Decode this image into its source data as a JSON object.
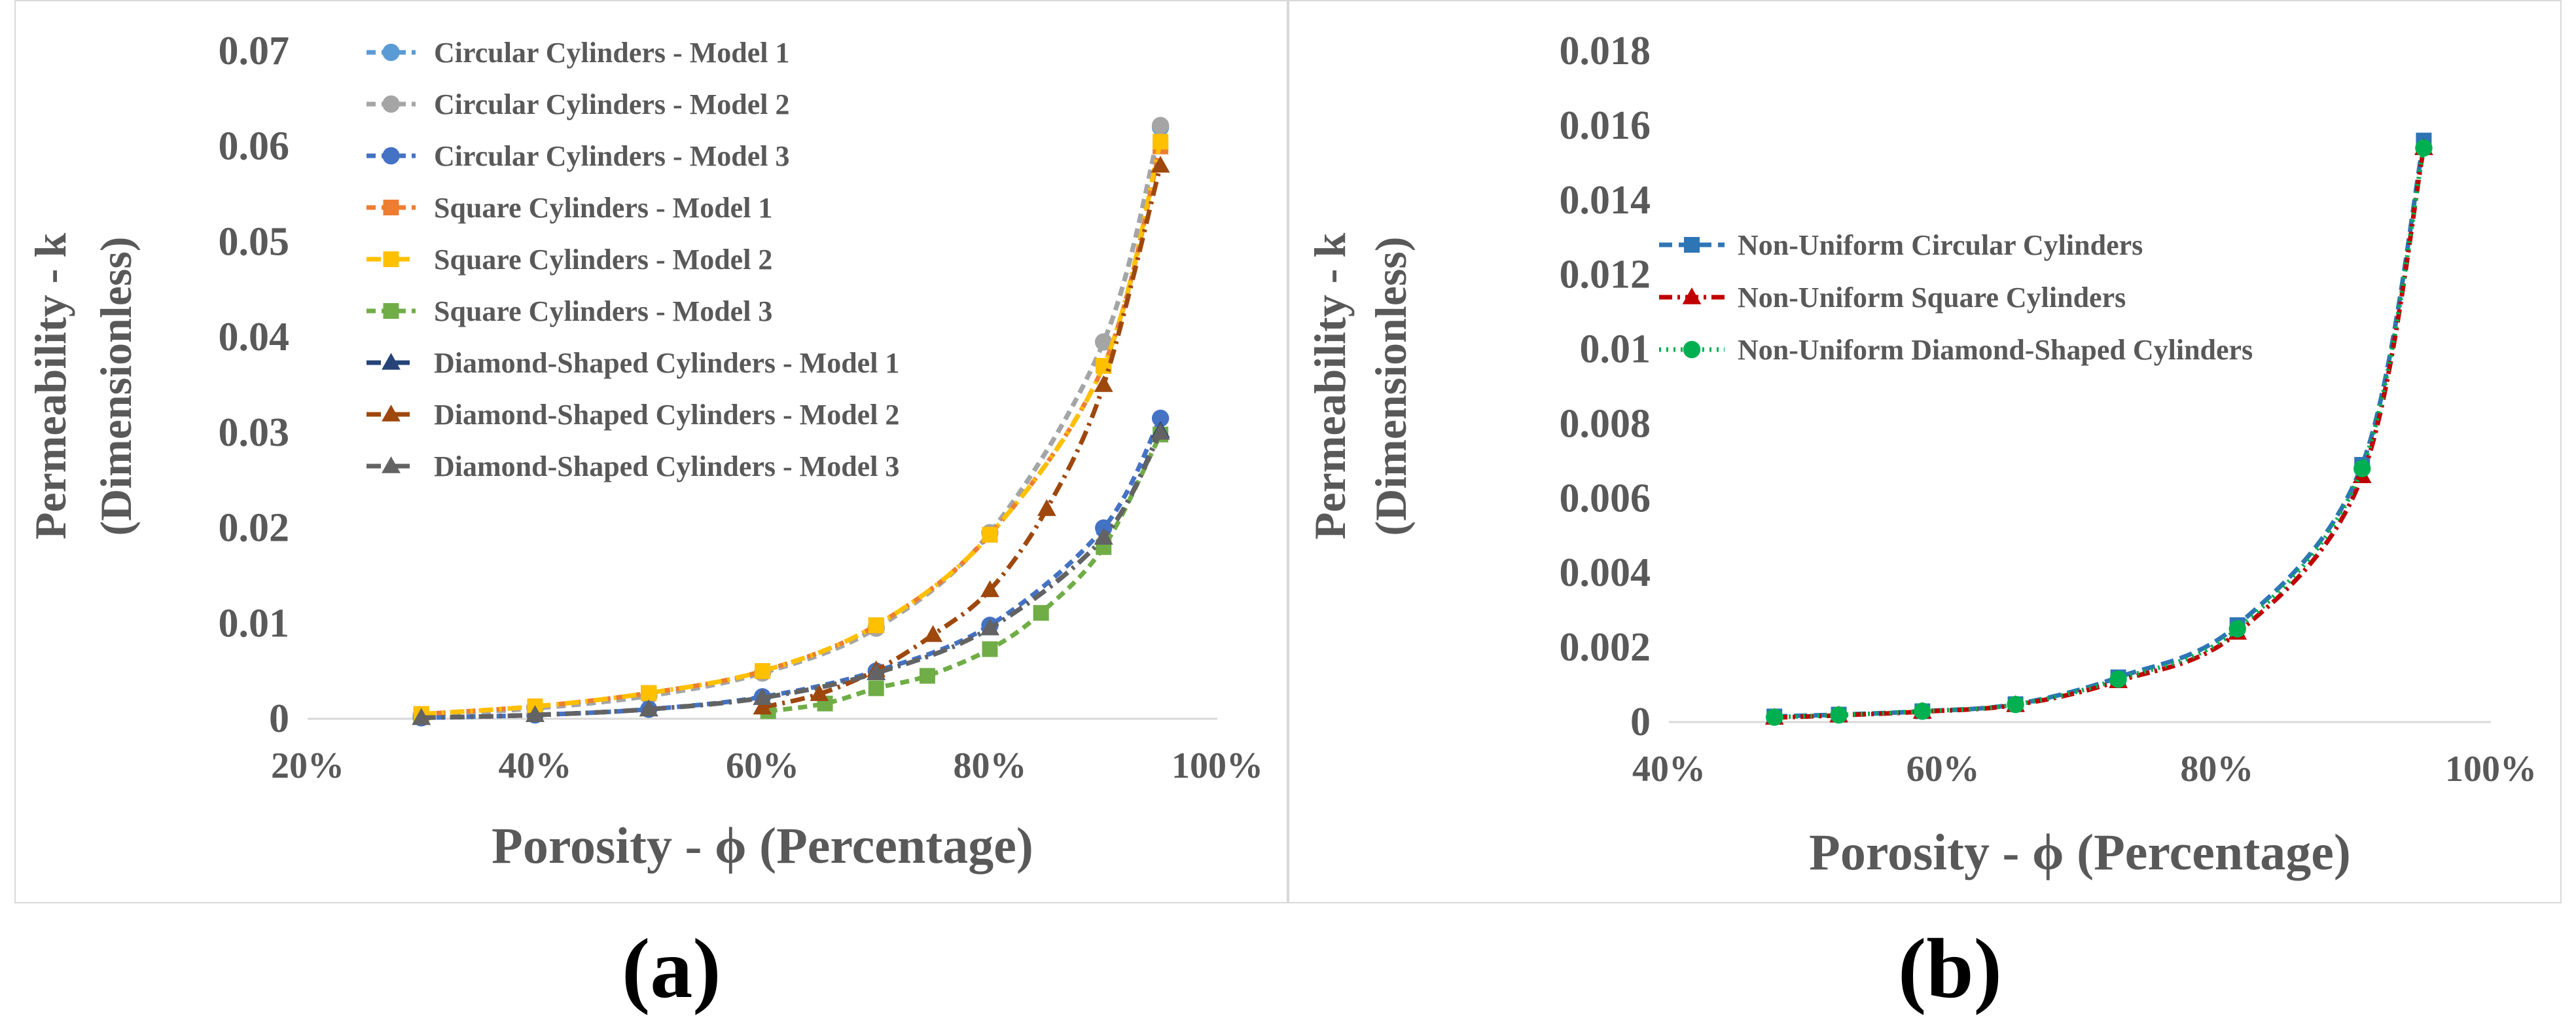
{
  "chart_data": [
    {
      "panel": "(a)",
      "type": "line",
      "xlabel": "Porosity - ϕ (Percentage)",
      "ylabel_line1": "Permeability - k",
      "ylabel_line2": "(Dimensionless)",
      "xlim": [
        0.2,
        1.0
      ],
      "ylim": [
        0,
        0.07
      ],
      "x_ticks": [
        0.2,
        0.4,
        0.6,
        0.8,
        1.0
      ],
      "x_tick_labels": [
        "20%",
        "40%",
        "60%",
        "80%",
        "100%"
      ],
      "y_ticks": [
        0,
        0.01,
        0.02,
        0.03,
        0.04,
        0.05,
        0.06,
        0.07
      ],
      "y_tick_labels": [
        "0",
        "0.01",
        "0.02",
        "0.03",
        "0.04",
        "0.05",
        "0.06",
        "0.07"
      ],
      "legend_position": "top-left",
      "series": [
        {
          "name": "Circular Cylinders - Model 1",
          "color": "#5b9bd5",
          "marker": "circle",
          "dash": "14,9",
          "x": [
            0.3,
            0.4,
            0.5,
            0.6,
            0.7,
            0.8,
            0.9,
            0.95
          ],
          "values": [
            0.0004,
            0.0011,
            0.0024,
            0.0048,
            0.0095,
            0.0195,
            0.0395,
            0.062
          ]
        },
        {
          "name": "Circular Cylinders - Model 2",
          "color": "#a5a5a5",
          "marker": "circle",
          "dash": "14,9",
          "x": [
            0.3,
            0.4,
            0.5,
            0.6,
            0.7,
            0.8,
            0.9,
            0.95
          ],
          "values": [
            0.0004,
            0.0011,
            0.0024,
            0.0048,
            0.0095,
            0.0195,
            0.0395,
            0.0622
          ]
        },
        {
          "name": "Circular Cylinders - Model 3",
          "color": "#4472c4",
          "marker": "circle",
          "dash": "14,9",
          "x": [
            0.3,
            0.4,
            0.5,
            0.6,
            0.7,
            0.8,
            0.9,
            0.95
          ],
          "values": [
            0.0001,
            0.0004,
            0.001,
            0.0023,
            0.005,
            0.0098,
            0.02,
            0.0315
          ]
        },
        {
          "name": "Square Cylinders - Model 1",
          "color": "#ed7d31",
          "marker": "square",
          "dash": "14,9",
          "x": [
            0.3,
            0.4,
            0.5,
            0.6,
            0.7,
            0.8,
            0.9,
            0.95
          ],
          "values": [
            0.0005,
            0.0013,
            0.0027,
            0.005,
            0.0098,
            0.0193,
            0.037,
            0.06
          ]
        },
        {
          "name": "Square Cylinders - Model 2",
          "color": "#ffc000",
          "marker": "square",
          "dash": "22,9,4,9",
          "x": [
            0.3,
            0.4,
            0.5,
            0.6,
            0.7,
            0.8,
            0.9,
            0.95
          ],
          "values": [
            0.0005,
            0.0013,
            0.0027,
            0.005,
            0.0098,
            0.0193,
            0.037,
            0.0605
          ]
        },
        {
          "name": "Square Cylinders - Model 3",
          "color": "#70ad47",
          "marker": "square",
          "dash": "14,9",
          "x": [
            0.605,
            0.655,
            0.7,
            0.745,
            0.8,
            0.845,
            0.9,
            0.95
          ],
          "values": [
            0.0008,
            0.0016,
            0.0032,
            0.0045,
            0.0073,
            0.0111,
            0.018,
            0.0298
          ]
        },
        {
          "name": "Diamond-Shaped Cylinders - Model 1",
          "color": "#264478",
          "marker": "triangle",
          "dash": "22,9,4,9",
          "x": [
            0.3,
            0.4,
            0.5,
            0.6,
            0.7,
            0.8,
            0.9,
            0.95
          ],
          "values": [
            0.0001,
            0.0004,
            0.001,
            0.0022,
            0.0048,
            0.0095,
            0.019,
            0.0302
          ]
        },
        {
          "name": "Diamond-Shaped Cylinders - Model 2",
          "color": "#9e480e",
          "marker": "triangle",
          "dash": "22,9,4,9",
          "x": [
            0.6,
            0.65,
            0.7,
            0.75,
            0.8,
            0.85,
            0.9,
            0.95
          ],
          "values": [
            0.0012,
            0.0026,
            0.0051,
            0.0088,
            0.0135,
            0.022,
            0.035,
            0.058
          ]
        },
        {
          "name": "Diamond-Shaped Cylinders - Model 3",
          "color": "#636363",
          "marker": "triangle",
          "dash": "22,9,4,9",
          "x": [
            0.3,
            0.4,
            0.5,
            0.6,
            0.7,
            0.8,
            0.9,
            0.95
          ],
          "values": [
            0.0001,
            0.0004,
            0.001,
            0.0022,
            0.0048,
            0.0095,
            0.019,
            0.03
          ]
        }
      ]
    },
    {
      "panel": "(b)",
      "type": "line",
      "xlabel": "Porosity - ϕ (Percentage)",
      "ylabel_line1": "Permeability - k",
      "ylabel_line2": "(Dimensionless)",
      "xlim": [
        0.4,
        1.0
      ],
      "ylim": [
        0,
        0.018
      ],
      "x_ticks": [
        0.4,
        0.6,
        0.8,
        1.0
      ],
      "x_tick_labels": [
        "40%",
        "60%",
        "80%",
        "100%"
      ],
      "y_ticks": [
        0,
        0.002,
        0.004,
        0.006,
        0.008,
        0.01,
        0.012,
        0.014,
        0.016,
        0.018
      ],
      "y_tick_labels": [
        "0",
        "0.002",
        "0.004",
        "0.006",
        "0.008",
        "0.01",
        "0.012",
        "0.014",
        "0.016",
        "0.018"
      ],
      "legend_position": "middle-left",
      "series": [
        {
          "name": "Non-Uniform Circular Cylinders",
          "color": "#2e75b6",
          "marker": "square",
          "dash": "20,10",
          "x": [
            0.477,
            0.524,
            0.585,
            0.653,
            0.728,
            0.815,
            0.906,
            0.951
          ],
          "values": [
            0.00015,
            0.0002,
            0.00029,
            0.00048,
            0.0012,
            0.0026,
            0.0069,
            0.0156
          ]
        },
        {
          "name": "Non-Uniform Square Cylinders",
          "color": "#c00000",
          "marker": "triangle",
          "dash": "20,8,4,8",
          "x": [
            0.477,
            0.524,
            0.585,
            0.653,
            0.728,
            0.815,
            0.906,
            0.951
          ],
          "values": [
            0.00012,
            0.00018,
            0.00028,
            0.00046,
            0.0011,
            0.0024,
            0.0066,
            0.0154
          ]
        },
        {
          "name": "Non-Uniform Diamond-Shaped Cylinders",
          "color": "#00b050",
          "marker": "circle",
          "dash": "3,8",
          "x": [
            0.477,
            0.524,
            0.585,
            0.653,
            0.728,
            0.815,
            0.906,
            0.951
          ],
          "values": [
            0.00013,
            0.00019,
            0.00029,
            0.00047,
            0.00115,
            0.0025,
            0.0068,
            0.0154
          ]
        }
      ]
    }
  ],
  "panel_labels": {
    "a": "(a)",
    "b": "(b)"
  }
}
